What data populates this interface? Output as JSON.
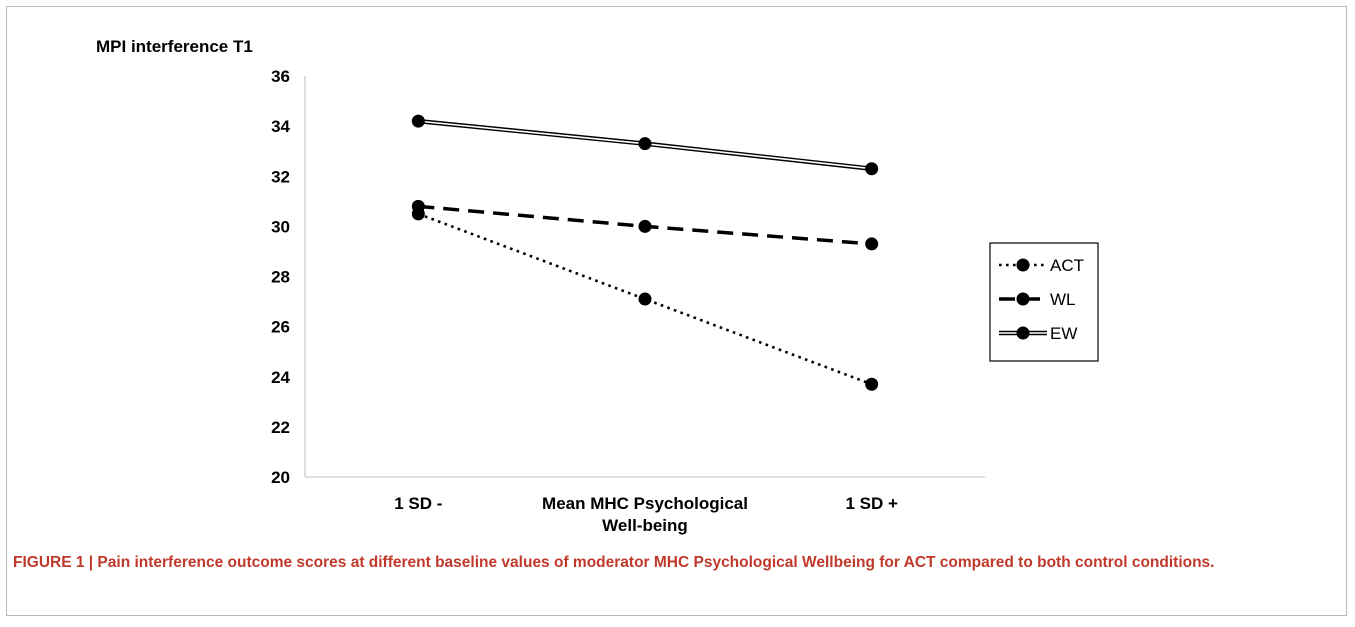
{
  "chart_data": {
    "type": "line",
    "ylabel": "MPI interference T1",
    "xlabel": "",
    "categories": [
      [
        "1 SD -"
      ],
      [
        "Mean MHC Psychological",
        "Well-being"
      ],
      [
        "1 SD +"
      ]
    ],
    "ylim": [
      20,
      36
    ],
    "yticks": [
      20,
      22,
      24,
      26,
      28,
      30,
      32,
      34,
      36
    ],
    "grid": false,
    "legend_position": "right",
    "series": [
      {
        "name": "ACT",
        "values": [
          30.5,
          27.1,
          23.7
        ],
        "style": "dotted",
        "color": "#000000"
      },
      {
        "name": "WL",
        "values": [
          30.8,
          30.0,
          29.3
        ],
        "style": "dashed",
        "color": "#000000"
      },
      {
        "name": "EW",
        "values": [
          34.2,
          33.3,
          32.3
        ],
        "style": "double",
        "color": "#000000"
      }
    ]
  },
  "caption": {
    "text": "FIGURE 1 | Pain interference outcome scores at different baseline values of moderator MHC Psychological Wellbeing for ACT compared to both control conditions.",
    "color": "#c0392b"
  }
}
